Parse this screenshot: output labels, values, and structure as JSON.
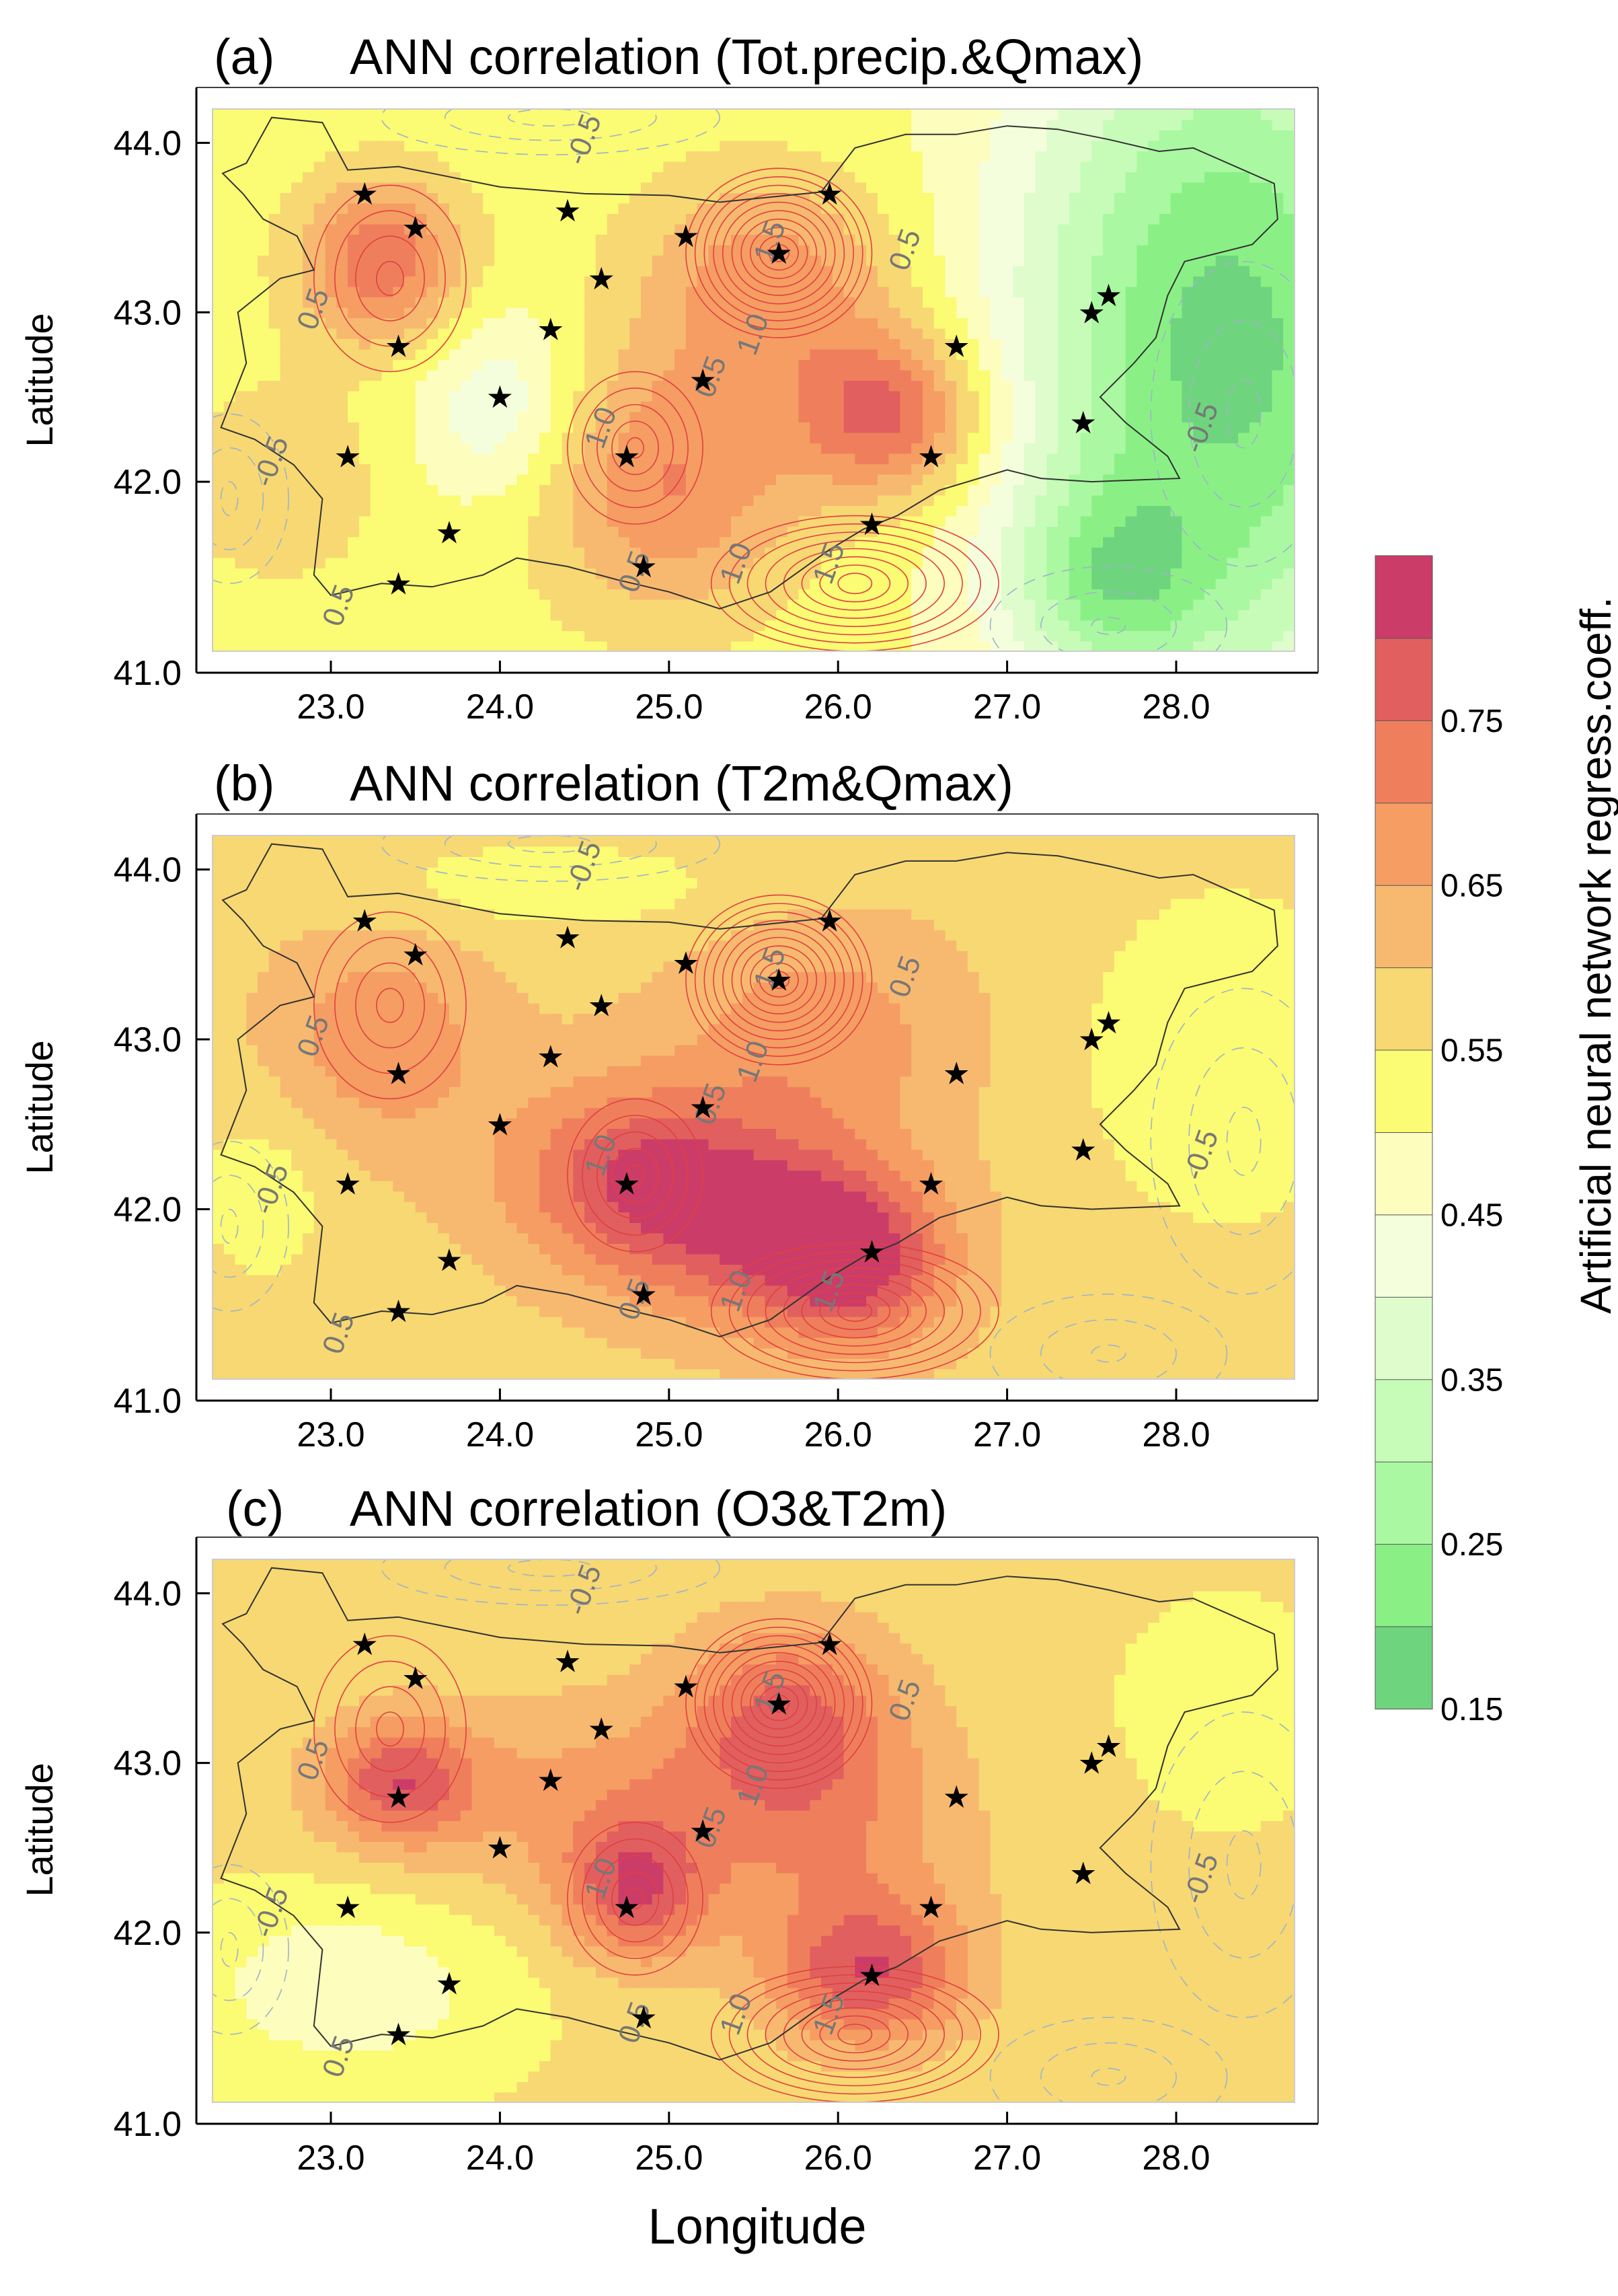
{
  "chart_data": [
    {
      "type": "heatmap",
      "panel_label": "(a)",
      "title": "ANN correlation (Tot.precip.&Qmax)",
      "xlabel": "",
      "ylabel": "Latitude",
      "xlim": [
        22.3,
        28.7
      ],
      "ylim": [
        41.0,
        44.2
      ],
      "background": 0.52,
      "blobs": [
        {
          "lon": 23.3,
          "lat": 43.3,
          "val": 0.74,
          "sx": 0.35,
          "sy": 0.35
        },
        {
          "lon": 25.6,
          "lat": 43.2,
          "val": 0.68,
          "sx": 0.55,
          "sy": 0.45
        },
        {
          "lon": 26.3,
          "lat": 42.4,
          "val": 0.77,
          "sx": 0.4,
          "sy": 0.35
        },
        {
          "lon": 25.0,
          "lat": 42.0,
          "val": 0.7,
          "sx": 0.55,
          "sy": 0.55
        },
        {
          "lon": 24.0,
          "lat": 42.45,
          "val": 0.4,
          "sx": 0.35,
          "sy": 0.4
        },
        {
          "lon": 28.3,
          "lat": 42.8,
          "val": 0.18,
          "sx": 0.9,
          "sy": 1.5
        },
        {
          "lon": 27.6,
          "lat": 41.4,
          "val": 0.35,
          "sx": 0.4,
          "sy": 0.4
        },
        {
          "lon": 22.7,
          "lat": 42.0,
          "val": 0.6,
          "sx": 0.4,
          "sy": 0.4
        }
      ],
      "contour_labels": [
        {
          "text": "-0.5",
          "lon": 24.55,
          "lat": 44.0
        },
        {
          "text": "-0.5",
          "lon": 28.2,
          "lat": 42.3
        },
        {
          "text": "-0.5",
          "lon": 22.7,
          "lat": 42.1
        },
        {
          "text": "0.5",
          "lon": 22.95,
          "lat": 43.0
        },
        {
          "text": "0.5",
          "lon": 25.3,
          "lat": 42.6
        },
        {
          "text": "0.5",
          "lon": 26.45,
          "lat": 43.35
        },
        {
          "text": "0.5",
          "lon": 24.85,
          "lat": 41.45
        },
        {
          "text": "0.5",
          "lon": 23.1,
          "lat": 41.25
        },
        {
          "text": "1.0",
          "lon": 25.55,
          "lat": 42.85
        },
        {
          "text": "1.0",
          "lon": 24.65,
          "lat": 42.3
        },
        {
          "text": "1.0",
          "lon": 25.45,
          "lat": 41.5
        },
        {
          "text": "1.5",
          "lon": 25.65,
          "lat": 43.4
        },
        {
          "text": "1.5",
          "lon": 26.0,
          "lat": 41.5
        }
      ]
    },
    {
      "type": "heatmap",
      "panel_label": "(b)",
      "title": "ANN correlation (T2m&Qmax)",
      "xlabel": "",
      "ylabel": "Latitude",
      "xlim": [
        22.3,
        28.7
      ],
      "ylim": [
        41.0,
        44.2
      ],
      "background": 0.58,
      "blobs": [
        {
          "lon": 23.3,
          "lat": 43.0,
          "val": 0.69,
          "sx": 0.45,
          "sy": 0.45
        },
        {
          "lon": 24.8,
          "lat": 42.2,
          "val": 0.77,
          "sx": 0.55,
          "sy": 0.4
        },
        {
          "lon": 26.1,
          "lat": 41.7,
          "val": 0.8,
          "sx": 0.4,
          "sy": 0.35
        },
        {
          "lon": 25.5,
          "lat": 41.9,
          "val": 0.74,
          "sx": 0.55,
          "sy": 0.4
        },
        {
          "lon": 25.9,
          "lat": 43.0,
          "val": 0.68,
          "sx": 0.6,
          "sy": 0.5
        },
        {
          "lon": 28.3,
          "lat": 42.9,
          "val": 0.5,
          "sx": 0.6,
          "sy": 0.7
        },
        {
          "lon": 24.3,
          "lat": 43.9,
          "val": 0.52,
          "sx": 0.9,
          "sy": 0.2
        },
        {
          "lon": 22.6,
          "lat": 42.1,
          "val": 0.52,
          "sx": 0.3,
          "sy": 0.4
        }
      ],
      "contour_labels": [
        {
          "text": "-0.5",
          "lon": 24.55,
          "lat": 44.0
        },
        {
          "text": "-0.5",
          "lon": 28.2,
          "lat": 42.3
        },
        {
          "text": "-0.5",
          "lon": 22.7,
          "lat": 42.1
        },
        {
          "text": "0.5",
          "lon": 22.95,
          "lat": 43.0
        },
        {
          "text": "0.5",
          "lon": 25.3,
          "lat": 42.6
        },
        {
          "text": "0.5",
          "lon": 26.45,
          "lat": 43.35
        },
        {
          "text": "0.5",
          "lon": 24.85,
          "lat": 41.45
        },
        {
          "text": "0.5",
          "lon": 23.1,
          "lat": 41.25
        },
        {
          "text": "1.0",
          "lon": 25.55,
          "lat": 42.85
        },
        {
          "text": "1.0",
          "lon": 24.65,
          "lat": 42.3
        },
        {
          "text": "1.0",
          "lon": 25.45,
          "lat": 41.5
        },
        {
          "text": "1.5",
          "lon": 25.65,
          "lat": 43.4
        },
        {
          "text": "1.5",
          "lon": 26.0,
          "lat": 41.5
        }
      ]
    },
    {
      "type": "heatmap",
      "panel_label": "(c)",
      "title": "ANN correlation (O3&T2m)",
      "xlabel": "Longitude",
      "ylabel": "Latitude",
      "xlim": [
        22.3,
        28.7
      ],
      "ylim": [
        41.0,
        44.2
      ],
      "background": 0.56,
      "blobs": [
        {
          "lon": 23.4,
          "lat": 42.9,
          "val": 0.75,
          "sx": 0.3,
          "sy": 0.25
        },
        {
          "lon": 24.8,
          "lat": 42.25,
          "val": 0.76,
          "sx": 0.3,
          "sy": 0.3
        },
        {
          "lon": 26.2,
          "lat": 41.75,
          "val": 0.76,
          "sx": 0.4,
          "sy": 0.3
        },
        {
          "lon": 25.7,
          "lat": 43.3,
          "val": 0.72,
          "sx": 0.45,
          "sy": 0.4
        },
        {
          "lon": 24.5,
          "lat": 42.8,
          "val": 0.66,
          "sx": 1.0,
          "sy": 0.45
        },
        {
          "lon": 26.0,
          "lat": 42.5,
          "val": 0.66,
          "sx": 0.6,
          "sy": 0.6
        },
        {
          "lon": 23.1,
          "lat": 41.7,
          "val": 0.46,
          "sx": 0.65,
          "sy": 0.4
        },
        {
          "lon": 28.3,
          "lat": 43.3,
          "val": 0.54,
          "sx": 0.6,
          "sy": 0.6
        }
      ],
      "contour_labels": [
        {
          "text": "-0.5",
          "lon": 24.55,
          "lat": 44.0
        },
        {
          "text": "-0.5",
          "lon": 28.2,
          "lat": 42.3
        },
        {
          "text": "-0.5",
          "lon": 22.7,
          "lat": 42.1
        },
        {
          "text": "0.5",
          "lon": 22.95,
          "lat": 43.0
        },
        {
          "text": "0.5",
          "lon": 25.3,
          "lat": 42.6
        },
        {
          "text": "0.5",
          "lon": 26.45,
          "lat": 43.35
        },
        {
          "text": "0.5",
          "lon": 24.85,
          "lat": 41.45
        },
        {
          "text": "0.5",
          "lon": 23.1,
          "lat": 41.25
        },
        {
          "text": "1.0",
          "lon": 25.55,
          "lat": 42.85
        },
        {
          "text": "1.0",
          "lon": 24.65,
          "lat": 42.3
        },
        {
          "text": "1.0",
          "lon": 25.45,
          "lat": 41.5
        },
        {
          "text": "1.5",
          "lon": 25.65,
          "lat": 43.4
        },
        {
          "text": "1.5",
          "lon": 26.0,
          "lat": 41.5
        }
      ]
    }
  ],
  "stations": [
    {
      "lon": 23.2,
      "lat": 43.7
    },
    {
      "lon": 23.5,
      "lat": 43.5
    },
    {
      "lon": 23.4,
      "lat": 42.8
    },
    {
      "lon": 24.4,
      "lat": 43.6
    },
    {
      "lon": 24.3,
      "lat": 42.9
    },
    {
      "lon": 24.6,
      "lat": 43.2
    },
    {
      "lon": 24.0,
      "lat": 42.5
    },
    {
      "lon": 23.1,
      "lat": 42.15
    },
    {
      "lon": 23.7,
      "lat": 41.7
    },
    {
      "lon": 23.4,
      "lat": 41.4
    },
    {
      "lon": 24.75,
      "lat": 42.15
    },
    {
      "lon": 24.85,
      "lat": 41.5
    },
    {
      "lon": 25.1,
      "lat": 43.45
    },
    {
      "lon": 25.65,
      "lat": 43.35
    },
    {
      "lon": 25.95,
      "lat": 43.7
    },
    {
      "lon": 25.2,
      "lat": 42.6
    },
    {
      "lon": 26.55,
      "lat": 42.15
    },
    {
      "lon": 26.2,
      "lat": 41.75
    },
    {
      "lon": 26.7,
      "lat": 42.8
    },
    {
      "lon": 27.5,
      "lat": 43.0
    },
    {
      "lon": 27.6,
      "lat": 43.1
    },
    {
      "lon": 27.45,
      "lat": 42.35
    }
  ],
  "x_ticks": [
    "23.0",
    "24.0",
    "25.0",
    "26.0",
    "27.0",
    "28.0"
  ],
  "x_tick_values": [
    23.0,
    24.0,
    25.0,
    26.0,
    27.0,
    28.0
  ],
  "y_ticks": [
    "44.0",
    "43.0",
    "42.0",
    "41.0"
  ],
  "y_tick_values": [
    44.0,
    43.0,
    42.0,
    41.0
  ],
  "colorbar": {
    "title": "Artificial neural network regress.coeff.",
    "levels": [
      0.15,
      0.2,
      0.25,
      0.3,
      0.35,
      0.4,
      0.45,
      0.5,
      0.55,
      0.6,
      0.65,
      0.7,
      0.75,
      0.8,
      0.85
    ],
    "labels": [
      "0.75",
      "0.65",
      "0.55",
      "0.45",
      "0.35",
      "0.25",
      "0.15"
    ],
    "label_values": [
      0.75,
      0.65,
      0.55,
      0.45,
      0.35,
      0.25,
      0.15
    ],
    "colors": [
      "#6fd47e",
      "#8af086",
      "#aaf8a2",
      "#c6fcb8",
      "#dffccc",
      "#f5fedc",
      "#fdfdbe",
      "#fbfb74",
      "#f7d873",
      "#f7b970",
      "#f59d63",
      "#ef7f5c",
      "#e15f5f",
      "#cc3c68"
    ]
  },
  "style_colors": {
    "hi_contour": "#e14040",
    "lo_contour": "#9fb4c8",
    "border": "#333333"
  }
}
